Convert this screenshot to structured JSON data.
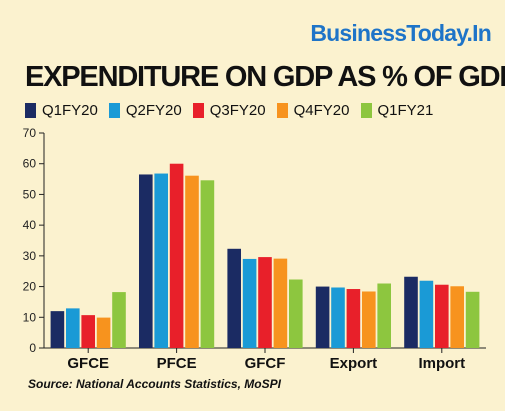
{
  "brand": "BusinessToday.In",
  "source": "Source: National Accounts Statistics, MoSPI",
  "chart_data": {
    "type": "bar",
    "title": "EXPENDITURE ON GDP AS % OF GDP",
    "categories": [
      "GFCE",
      "PFCE",
      "GFCF",
      "Export",
      "Import"
    ],
    "series": [
      {
        "name": "Q1FY20",
        "color": "#1b2b63",
        "values": [
          12,
          56.5,
          32.3,
          20,
          23.2
        ]
      },
      {
        "name": "Q2FY20",
        "color": "#1a9ad6",
        "values": [
          12.9,
          56.8,
          29,
          19.7,
          21.9
        ]
      },
      {
        "name": "Q3FY20",
        "color": "#e8202a",
        "values": [
          10.7,
          60,
          29.6,
          19.2,
          20.6
        ]
      },
      {
        "name": "Q4FY20",
        "color": "#f7931e",
        "values": [
          9.9,
          56.1,
          29.1,
          18.4,
          20.1
        ]
      },
      {
        "name": "Q1FY21",
        "color": "#8dc63f",
        "values": [
          18.2,
          54.6,
          22.3,
          21,
          18.3
        ]
      }
    ],
    "yticks": [
      0,
      10,
      20,
      30,
      40,
      50,
      60,
      70
    ],
    "ylim": [
      0,
      70
    ],
    "xlabel": "",
    "ylabel": "",
    "grid": false,
    "legend_position": "top"
  }
}
